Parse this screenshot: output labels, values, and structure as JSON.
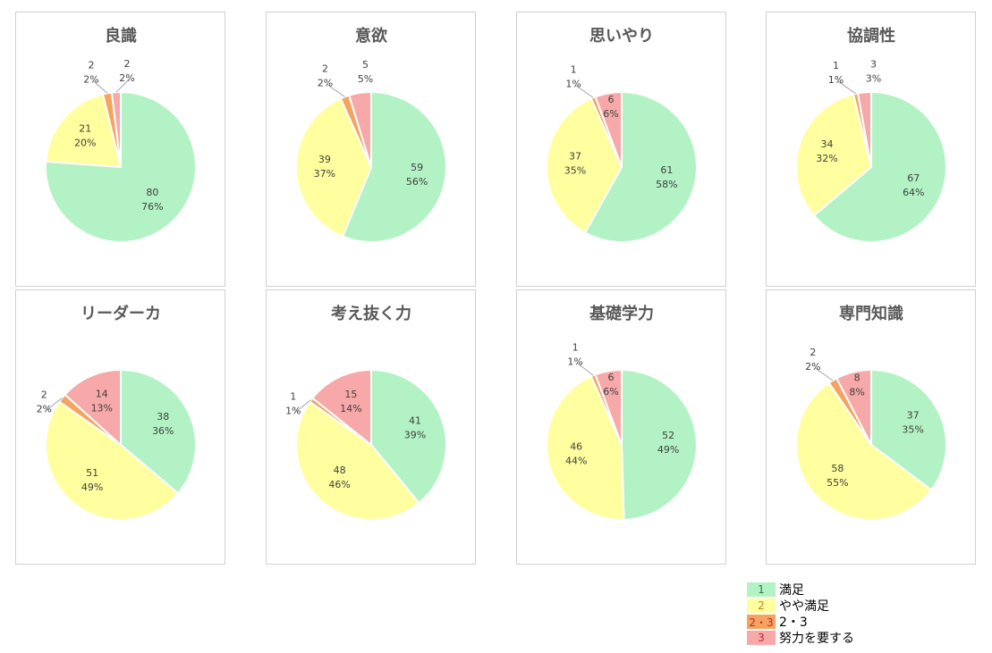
{
  "colors": {
    "manzoku": "#b3f2c4",
    "yaya": "#ffff9f",
    "mid": "#f4a460",
    "doryoku": "#f7a8a8"
  },
  "legend": [
    {
      "code": "1",
      "label": "満足",
      "swatch": "#b3f2c4",
      "text_color": "#2e7d32"
    },
    {
      "code": "2",
      "label": "やや満足",
      "swatch": "#ffff9f",
      "text_color": "#c08020"
    },
    {
      "code": "2・3",
      "label": "2・3",
      "swatch": "#f4a460",
      "text_color": "#c62828"
    },
    {
      "code": "3",
      "label": "努力を要する",
      "swatch": "#f7a8a8",
      "text_color": "#c62828"
    }
  ],
  "chart_data": [
    {
      "type": "pie",
      "title": "良識",
      "slices": [
        {
          "value": 80,
          "pct": "76%",
          "color": "#b3f2c4"
        },
        {
          "value": 21,
          "pct": "20%",
          "color": "#ffff9f"
        },
        {
          "value": 2,
          "pct": "2%",
          "color": "#f4a460"
        },
        {
          "value": 2,
          "pct": "2%",
          "color": "#f7a8a8"
        }
      ]
    },
    {
      "type": "pie",
      "title": "意欲",
      "slices": [
        {
          "value": 59,
          "pct": "56%",
          "color": "#b3f2c4"
        },
        {
          "value": 39,
          "pct": "37%",
          "color": "#ffff9f"
        },
        {
          "value": 2,
          "pct": "2%",
          "color": "#f4a460"
        },
        {
          "value": 5,
          "pct": "5%",
          "color": "#f7a8a8"
        }
      ]
    },
    {
      "type": "pie",
      "title": "思いやり",
      "slices": [
        {
          "value": 61,
          "pct": "58%",
          "color": "#b3f2c4"
        },
        {
          "value": 37,
          "pct": "35%",
          "color": "#ffff9f"
        },
        {
          "value": 1,
          "pct": "1%",
          "color": "#f4a460"
        },
        {
          "value": 6,
          "pct": "6%",
          "color": "#f7a8a8"
        }
      ]
    },
    {
      "type": "pie",
      "title": "協調性",
      "slices": [
        {
          "value": 67,
          "pct": "64%",
          "color": "#b3f2c4"
        },
        {
          "value": 34,
          "pct": "32%",
          "color": "#ffff9f"
        },
        {
          "value": 1,
          "pct": "1%",
          "color": "#f4a460"
        },
        {
          "value": 3,
          "pct": "3%",
          "color": "#f7a8a8"
        }
      ]
    },
    {
      "type": "pie",
      "title": "リーダーカ",
      "slices": [
        {
          "value": 38,
          "pct": "36%",
          "color": "#b3f2c4"
        },
        {
          "value": 51,
          "pct": "49%",
          "color": "#ffff9f"
        },
        {
          "value": 2,
          "pct": "2%",
          "color": "#f4a460"
        },
        {
          "value": 14,
          "pct": "13%",
          "color": "#f7a8a8"
        }
      ]
    },
    {
      "type": "pie",
      "title": "考え抜く力",
      "slices": [
        {
          "value": 41,
          "pct": "39%",
          "color": "#b3f2c4"
        },
        {
          "value": 48,
          "pct": "46%",
          "color": "#ffff9f"
        },
        {
          "value": 1,
          "pct": "1%",
          "color": "#f4a460"
        },
        {
          "value": 15,
          "pct": "14%",
          "color": "#f7a8a8"
        }
      ]
    },
    {
      "type": "pie",
      "title": "基礎学力",
      "slices": [
        {
          "value": 52,
          "pct": "49%",
          "color": "#b3f2c4"
        },
        {
          "value": 46,
          "pct": "44%",
          "color": "#ffff9f"
        },
        {
          "value": 1,
          "pct": "1%",
          "color": "#f4a460"
        },
        {
          "value": 6,
          "pct": "6%",
          "color": "#f7a8a8"
        }
      ]
    },
    {
      "type": "pie",
      "title": "専門知識",
      "slices": [
        {
          "value": 37,
          "pct": "35%",
          "color": "#b3f2c4"
        },
        {
          "value": 58,
          "pct": "55%",
          "color": "#ffff9f"
        },
        {
          "value": 2,
          "pct": "2%",
          "color": "#f4a460"
        },
        {
          "value": 8,
          "pct": "8%",
          "color": "#f7a8a8"
        }
      ]
    }
  ]
}
